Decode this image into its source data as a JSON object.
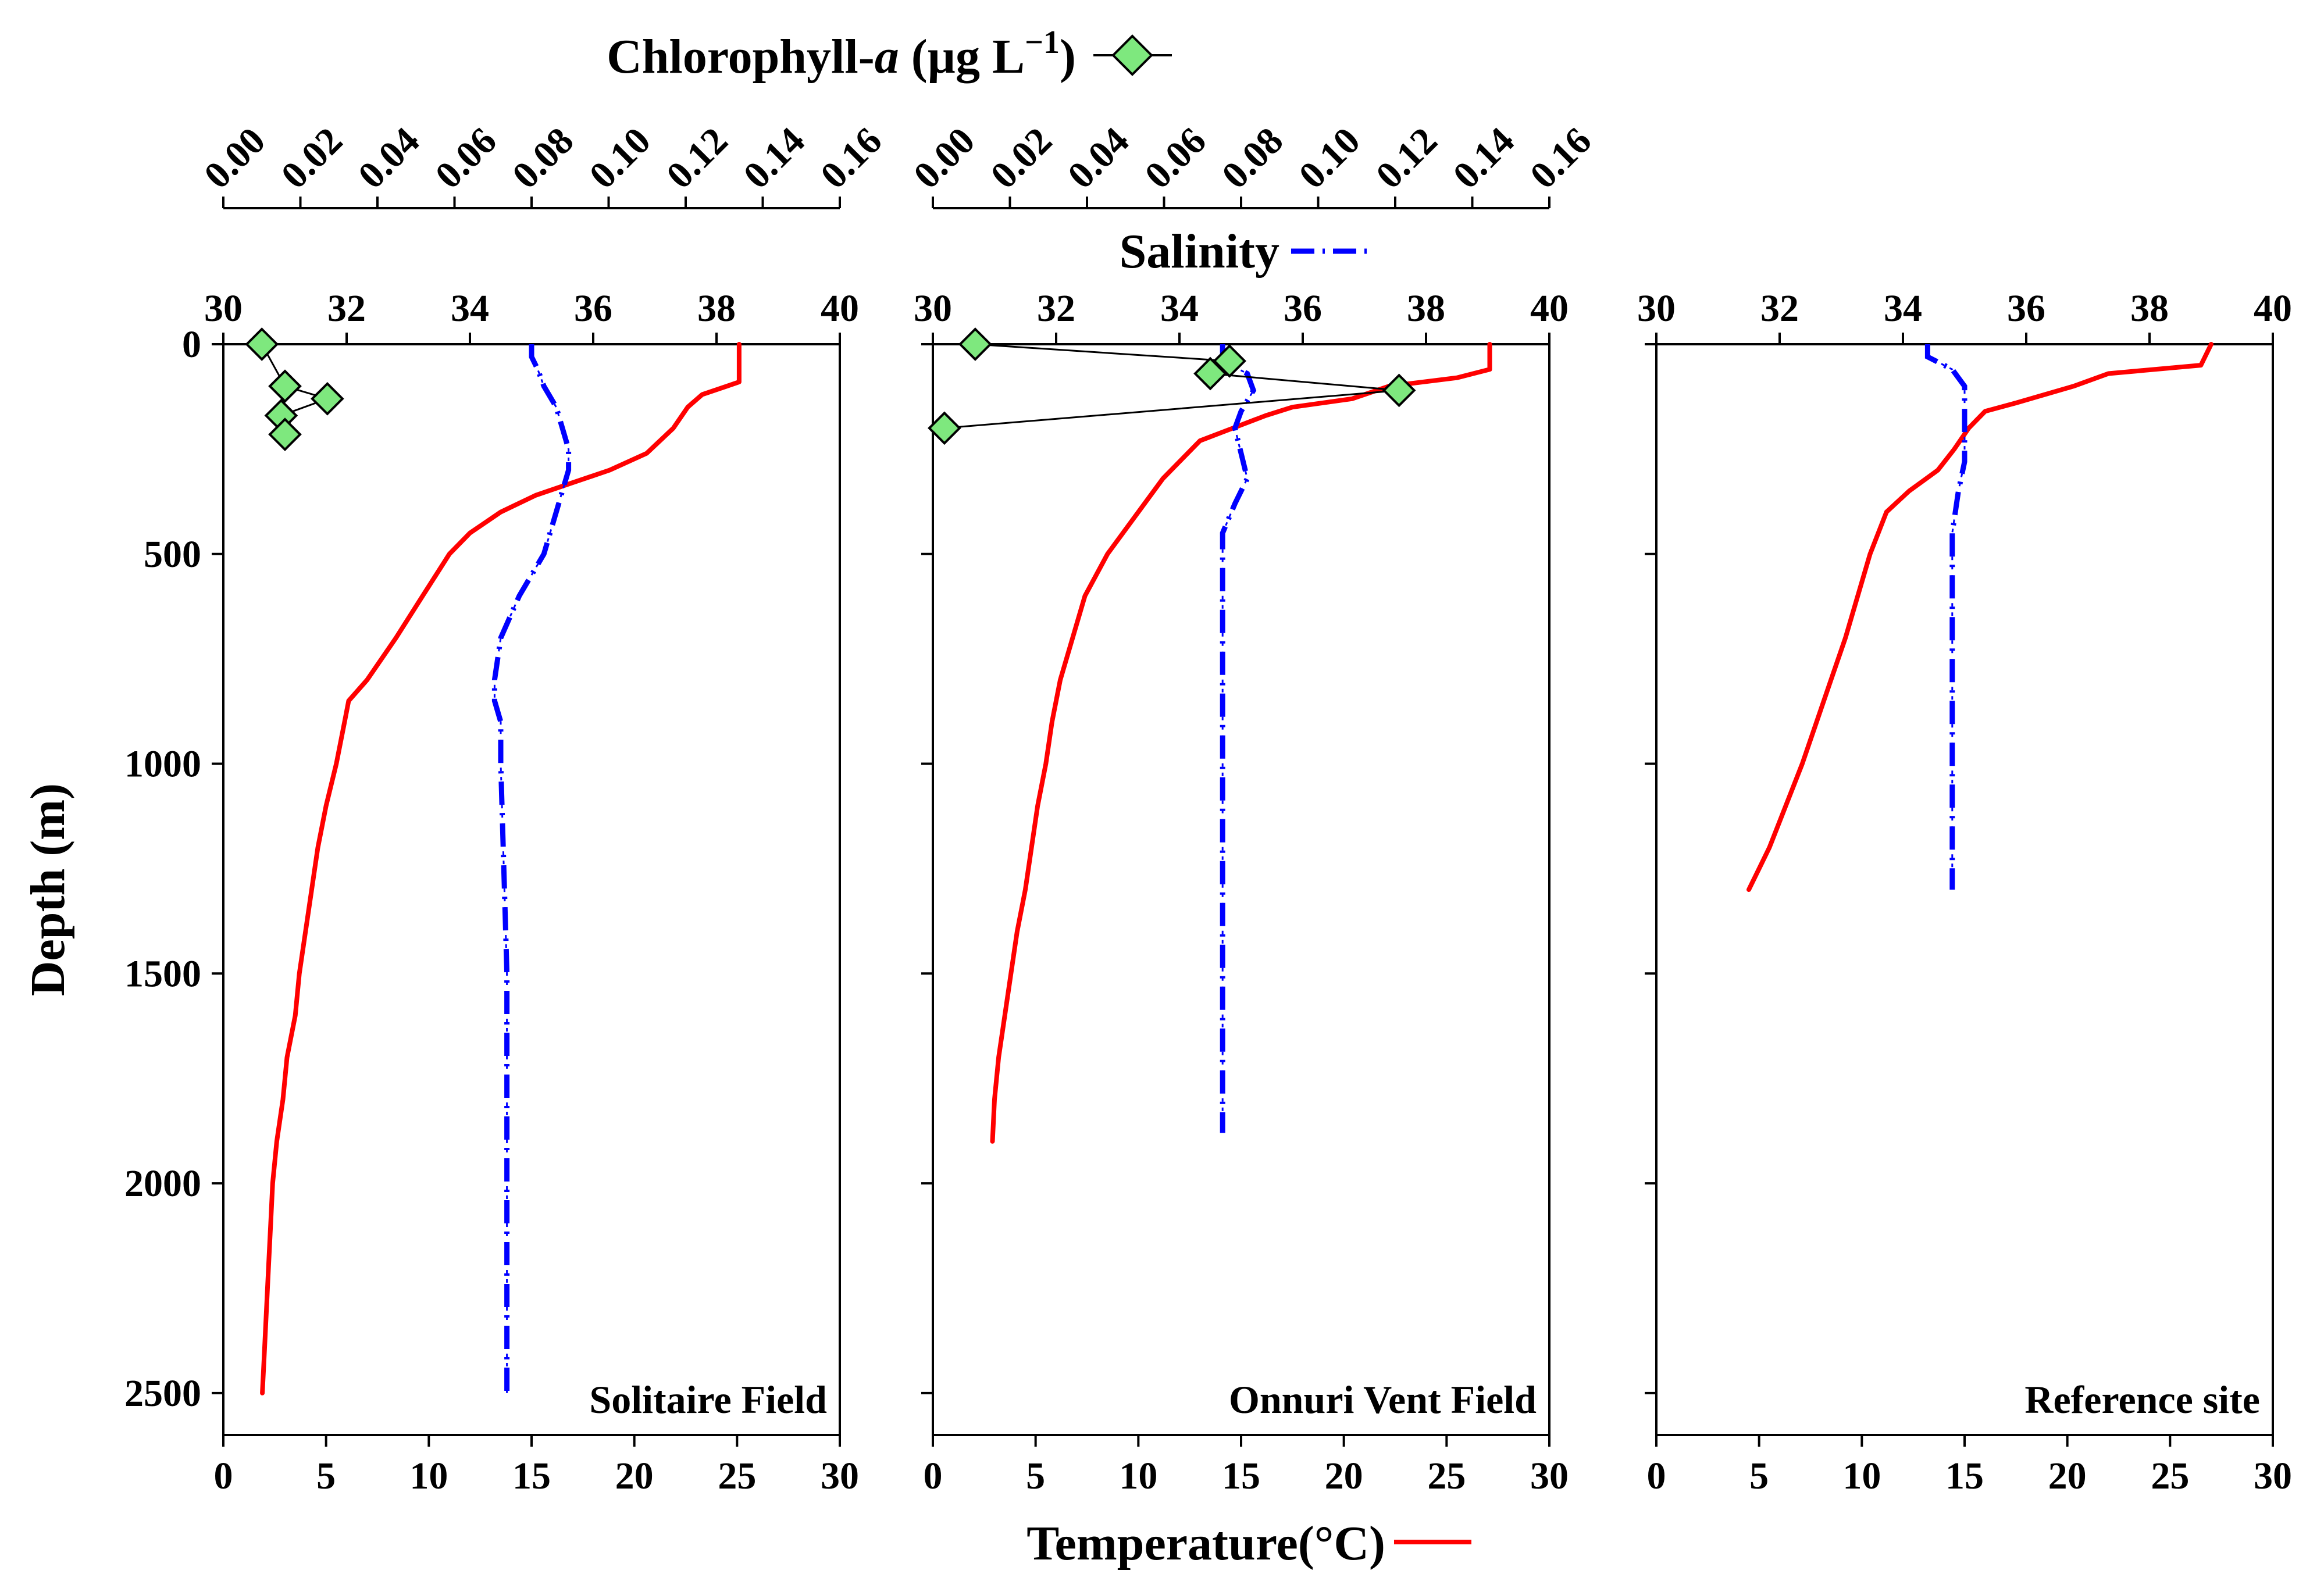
{
  "chart_data": {
    "type": "line",
    "y_axis": {
      "label": "Depth (m)",
      "ylim": [
        0,
        2600
      ],
      "ticks": [
        0,
        500,
        1000,
        1500,
        2000,
        2500
      ],
      "inverted": true
    },
    "temperature_axis": {
      "label": "Temperature(°C)",
      "xlim": [
        0,
        30
      ],
      "ticks": [
        0,
        5,
        10,
        15,
        20,
        25,
        30
      ],
      "color": "#ff0000"
    },
    "salinity_axis": {
      "label": "Salinity",
      "xlim": [
        30,
        40
      ],
      "ticks": [
        30,
        32,
        34,
        36,
        38,
        40
      ],
      "color": "#0000ff"
    },
    "chlorophyll_axis": {
      "label_main": "Chlorophyll-",
      "label_italic": "a",
      "label_units": " (µg L",
      "label_sup": "−1",
      "label_close": ")",
      "xlim": [
        0,
        0.16
      ],
      "ticks": [
        "0.00",
        "0.02",
        "0.04",
        "0.06",
        "0.08",
        "0.10",
        "0.12",
        "0.14",
        "0.16"
      ],
      "marker_color": "#7ee87e"
    },
    "panels": [
      {
        "name": "Solitaire Field",
        "show_chl_axis": true,
        "show_sal_title": false,
        "temperature": [
          [
            0,
            25.1
          ],
          [
            90,
            25.1
          ],
          [
            100,
            24.5
          ],
          [
            120,
            23.3
          ],
          [
            150,
            22.6
          ],
          [
            200,
            21.9
          ],
          [
            260,
            20.6
          ],
          [
            300,
            18.8
          ],
          [
            330,
            17.0
          ],
          [
            360,
            15.2
          ],
          [
            400,
            13.5
          ],
          [
            450,
            12.0
          ],
          [
            500,
            11.0
          ],
          [
            600,
            9.7
          ],
          [
            700,
            8.4
          ],
          [
            800,
            7.0
          ],
          [
            850,
            6.1
          ],
          [
            900,
            5.9
          ],
          [
            1000,
            5.5
          ],
          [
            1100,
            5.0
          ],
          [
            1200,
            4.6
          ],
          [
            1300,
            4.3
          ],
          [
            1400,
            4.0
          ],
          [
            1500,
            3.7
          ],
          [
            1600,
            3.5
          ],
          [
            1700,
            3.1
          ],
          [
            1800,
            2.9
          ],
          [
            1900,
            2.6
          ],
          [
            2000,
            2.4
          ],
          [
            2100,
            2.3
          ],
          [
            2200,
            2.2
          ],
          [
            2300,
            2.1
          ],
          [
            2400,
            2.0
          ],
          [
            2500,
            1.9
          ]
        ],
        "salinity": [
          [
            0,
            35.0
          ],
          [
            30,
            35.0
          ],
          [
            60,
            35.1
          ],
          [
            100,
            35.2
          ],
          [
            150,
            35.4
          ],
          [
            200,
            35.5
          ],
          [
            250,
            35.6
          ],
          [
            300,
            35.6
          ],
          [
            350,
            35.5
          ],
          [
            400,
            35.4
          ],
          [
            500,
            35.2
          ],
          [
            600,
            34.8
          ],
          [
            700,
            34.5
          ],
          [
            800,
            34.4
          ],
          [
            850,
            34.4
          ],
          [
            900,
            34.5
          ],
          [
            1000,
            34.5
          ],
          [
            1500,
            34.6
          ],
          [
            2000,
            34.6
          ],
          [
            2500,
            34.6
          ]
        ],
        "chlorophyll": [
          [
            0,
            0.01
          ],
          [
            100,
            0.016
          ],
          [
            130,
            0.027
          ],
          [
            170,
            0.015
          ],
          [
            215,
            0.016
          ]
        ]
      },
      {
        "name": "Onnuri Vent Field",
        "show_chl_axis": true,
        "show_sal_title": true,
        "temperature": [
          [
            0,
            27.1
          ],
          [
            60,
            27.1
          ],
          [
            80,
            25.5
          ],
          [
            100,
            22.2
          ],
          [
            130,
            20.4
          ],
          [
            150,
            17.5
          ],
          [
            170,
            16.2
          ],
          [
            200,
            14.6
          ],
          [
            230,
            13.0
          ],
          [
            280,
            12.0
          ],
          [
            320,
            11.2
          ],
          [
            400,
            10.0
          ],
          [
            500,
            8.5
          ],
          [
            600,
            7.4
          ],
          [
            700,
            6.8
          ],
          [
            800,
            6.2
          ],
          [
            900,
            5.8
          ],
          [
            1000,
            5.5
          ],
          [
            1100,
            5.1
          ],
          [
            1200,
            4.8
          ],
          [
            1300,
            4.5
          ],
          [
            1400,
            4.1
          ],
          [
            1500,
            3.8
          ],
          [
            1600,
            3.5
          ],
          [
            1700,
            3.2
          ],
          [
            1800,
            3.0
          ],
          [
            1900,
            2.9
          ]
        ],
        "salinity": [
          [
            0,
            34.7
          ],
          [
            40,
            34.7
          ],
          [
            70,
            35.1
          ],
          [
            110,
            35.2
          ],
          [
            160,
            35.0
          ],
          [
            200,
            34.9
          ],
          [
            260,
            35.0
          ],
          [
            320,
            35.1
          ],
          [
            380,
            34.9
          ],
          [
            450,
            34.7
          ],
          [
            500,
            34.7
          ],
          [
            800,
            34.7
          ],
          [
            1000,
            34.7
          ],
          [
            1500,
            34.7
          ],
          [
            1880,
            34.7
          ]
        ],
        "chlorophyll": [
          [
            0,
            0.011
          ],
          [
            40,
            0.077
          ],
          [
            70,
            0.072
          ],
          [
            110,
            0.121
          ],
          [
            200,
            0.003
          ]
        ]
      },
      {
        "name": "Reference site",
        "show_chl_axis": false,
        "show_sal_title": false,
        "temperature": [
          [
            0,
            27.0
          ],
          [
            50,
            26.5
          ],
          [
            70,
            22.0
          ],
          [
            100,
            20.3
          ],
          [
            140,
            17.5
          ],
          [
            160,
            16.0
          ],
          [
            200,
            15.2
          ],
          [
            250,
            14.5
          ],
          [
            300,
            13.7
          ],
          [
            350,
            12.3
          ],
          [
            400,
            11.2
          ],
          [
            450,
            10.8
          ],
          [
            500,
            10.4
          ],
          [
            600,
            9.8
          ],
          [
            700,
            9.2
          ],
          [
            800,
            8.5
          ],
          [
            900,
            7.8
          ],
          [
            1000,
            7.1
          ],
          [
            1100,
            6.3
          ],
          [
            1200,
            5.5
          ],
          [
            1250,
            5.0
          ],
          [
            1300,
            4.5
          ]
        ],
        "salinity": [
          [
            0,
            34.4
          ],
          [
            30,
            34.4
          ],
          [
            60,
            34.8
          ],
          [
            100,
            35.0
          ],
          [
            150,
            35.0
          ],
          [
            200,
            35.0
          ],
          [
            280,
            35.0
          ],
          [
            350,
            34.9
          ],
          [
            450,
            34.8
          ],
          [
            600,
            34.8
          ],
          [
            800,
            34.8
          ],
          [
            1000,
            34.8
          ],
          [
            1200,
            34.8
          ],
          [
            1300,
            34.8
          ]
        ],
        "chlorophyll": []
      }
    ]
  }
}
